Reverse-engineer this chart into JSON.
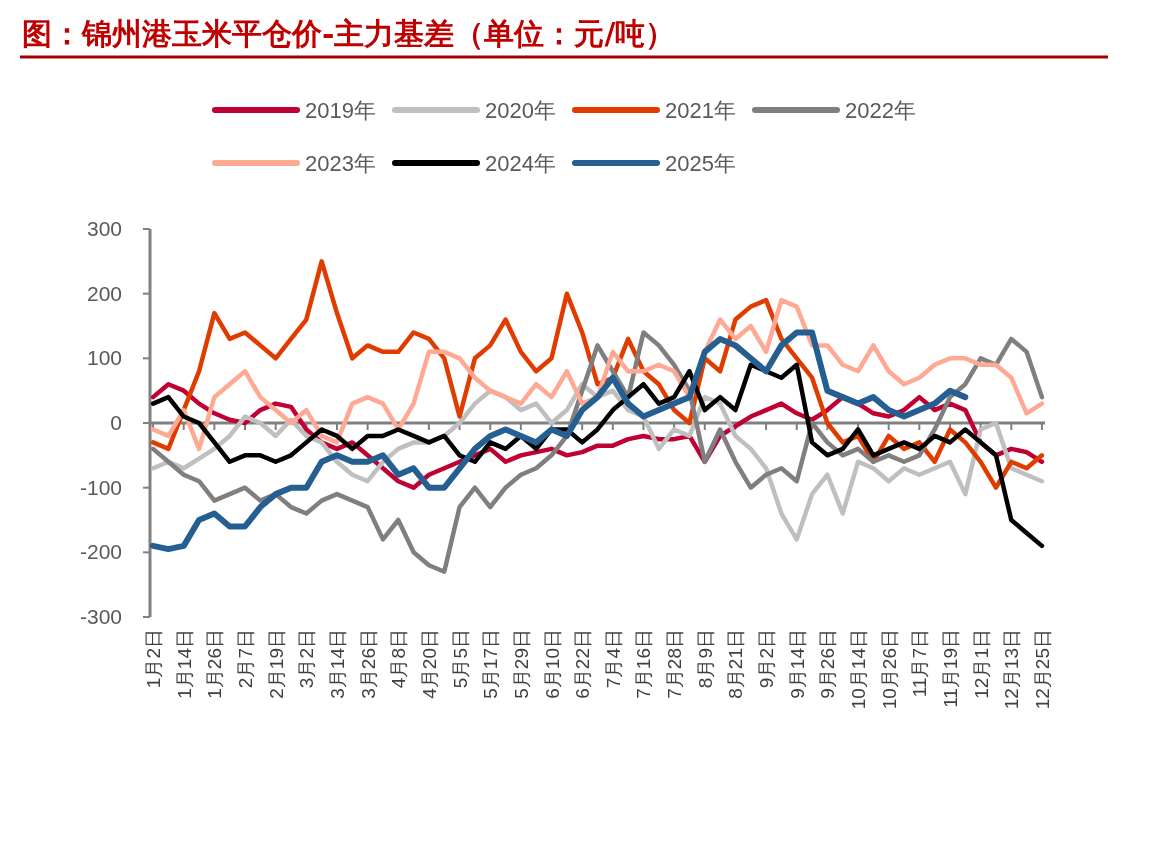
{
  "chart_data": {
    "type": "line",
    "title": "图：锦州港玉米平仓价-主力基差（单位：元/吨）",
    "categories": [
      "1月2日",
      null,
      "1月14日",
      null,
      "1月26日",
      null,
      "2月7日",
      null,
      "2月19日",
      null,
      "3月2日",
      null,
      "3月14日",
      null,
      "3月26日",
      null,
      "4月8日",
      null,
      "4月20日",
      null,
      "5月5日",
      null,
      "5月17日",
      null,
      "5月29日",
      null,
      "6月10日",
      null,
      "6月22日",
      null,
      "7月4日",
      null,
      "7月16日",
      null,
      "7月28日",
      null,
      "8月9日",
      null,
      "8月21日",
      null,
      "9月2日",
      null,
      "9月14日",
      null,
      "9月26日",
      null,
      "10月14日",
      null,
      "10月26日",
      null,
      "11月7日",
      null,
      "11月19日",
      null,
      "12月1日",
      null,
      "12月13日",
      null,
      "12月25日"
    ],
    "ylim": [
      -300,
      300
    ],
    "yticks": [
      -300,
      -200,
      -100,
      0,
      100,
      200,
      300
    ],
    "legend": "top",
    "line_style": "solid",
    "series": [
      {
        "name": "2019年",
        "color": "#c00032",
        "values": [
          40,
          60,
          50,
          30,
          15,
          5,
          0,
          20,
          30,
          25,
          -10,
          -30,
          -40,
          -30,
          -50,
          -70,
          -90,
          -100,
          -80,
          -70,
          -60,
          -50,
          -40,
          -60,
          -50,
          -45,
          -40,
          -50,
          -45,
          -35,
          -35,
          -25,
          -20,
          -25,
          -25,
          -20,
          -60,
          -20,
          -5,
          10,
          20,
          30,
          15,
          5,
          20,
          40,
          30,
          15,
          10,
          20,
          40,
          20,
          30,
          20,
          -30,
          -50,
          -40,
          -45,
          -60
        ]
      },
      {
        "name": "2020年",
        "color": "#bfbfbf",
        "values": [
          -70,
          -60,
          -70,
          -55,
          -40,
          -20,
          10,
          0,
          -20,
          5,
          -20,
          -30,
          -60,
          -80,
          -90,
          -60,
          -40,
          -30,
          -30,
          -20,
          0,
          30,
          50,
          40,
          20,
          30,
          0,
          20,
          60,
          40,
          50,
          20,
          10,
          -40,
          -10,
          -20,
          40,
          30,
          -20,
          -40,
          -70,
          -140,
          -180,
          -110,
          -80,
          -140,
          -60,
          -70,
          -90,
          -70,
          -80,
          -70,
          -60,
          -110,
          -10,
          0,
          -70,
          -80,
          -90
        ]
      },
      {
        "name": "2021年",
        "color": "#e03c00",
        "values": [
          -30,
          -40,
          20,
          80,
          170,
          130,
          140,
          120,
          100,
          130,
          160,
          250,
          170,
          100,
          120,
          110,
          110,
          140,
          130,
          100,
          10,
          100,
          120,
          160,
          110,
          80,
          100,
          200,
          140,
          60,
          70,
          130,
          80,
          60,
          20,
          0,
          100,
          80,
          160,
          180,
          190,
          130,
          100,
          70,
          0,
          -30,
          -20,
          -60,
          -20,
          -40,
          -30,
          -60,
          -10,
          -30,
          -60,
          -100,
          -60,
          -70,
          -50
        ]
      },
      {
        "name": "2022年",
        "color": "#7f7f7f",
        "values": [
          -40,
          -60,
          -80,
          -90,
          -120,
          -110,
          -100,
          -120,
          -110,
          -130,
          -140,
          -120,
          -110,
          -120,
          -130,
          -180,
          -150,
          -200,
          -220,
          -230,
          -130,
          -100,
          -130,
          -100,
          -80,
          -70,
          -50,
          -20,
          50,
          120,
          80,
          40,
          140,
          120,
          90,
          50,
          -60,
          -10,
          -60,
          -100,
          -80,
          -70,
          -90,
          0,
          -30,
          -50,
          -40,
          -60,
          -50,
          -60,
          -50,
          -10,
          40,
          60,
          100,
          90,
          130,
          110,
          40
        ]
      },
      {
        "name": "2023年",
        "color": "#ffa995",
        "values": [
          -10,
          -20,
          20,
          -40,
          40,
          60,
          80,
          40,
          20,
          0,
          20,
          -20,
          -30,
          30,
          40,
          30,
          -10,
          30,
          110,
          110,
          100,
          70,
          50,
          40,
          30,
          60,
          40,
          80,
          30,
          40,
          110,
          80,
          80,
          90,
          80,
          40,
          110,
          160,
          130,
          150,
          110,
          190,
          180,
          120,
          120,
          90,
          80,
          120,
          80,
          60,
          70,
          90,
          100,
          100,
          90,
          90,
          70,
          15,
          30
        ]
      },
      {
        "name": "2024年",
        "color": "#000000",
        "values": [
          30,
          40,
          10,
          0,
          -30,
          -60,
          -50,
          -50,
          -60,
          -50,
          -30,
          -10,
          -20,
          -40,
          -20,
          -20,
          -10,
          -20,
          -30,
          -20,
          -50,
          -60,
          -30,
          -40,
          -20,
          -40,
          -10,
          -10,
          -30,
          -10,
          20,
          40,
          60,
          30,
          40,
          80,
          20,
          40,
          20,
          90,
          80,
          70,
          90,
          -30,
          -50,
          -40,
          -10,
          -50,
          -40,
          -30,
          -40,
          -20,
          -30,
          -10,
          -30,
          -50,
          -150,
          -170,
          -190
        ]
      },
      {
        "name": "2025年",
        "color": "#255e91",
        "values": [
          -190,
          -195,
          -190,
          -150,
          -140,
          -160,
          -160,
          -130,
          -110,
          -100,
          -100,
          -60,
          -50,
          -60,
          -60,
          -50,
          -80,
          -70,
          -100,
          -100,
          -70,
          -40,
          -20,
          -10,
          -20,
          -30,
          -10,
          -20,
          20,
          40,
          70,
          30,
          10,
          20,
          30,
          40,
          110,
          130,
          120,
          100,
          80,
          120,
          140,
          140,
          50,
          40,
          30,
          40,
          20,
          10,
          20,
          30,
          50,
          40,
          null,
          null,
          null,
          null,
          null
        ]
      }
    ]
  }
}
